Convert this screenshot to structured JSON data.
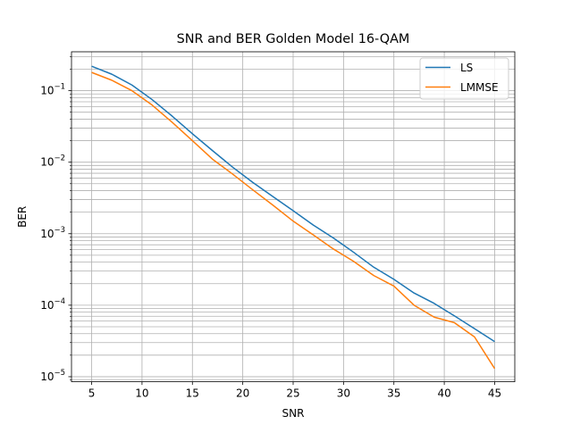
{
  "chart_data": {
    "type": "line",
    "title": "SNR and BER Golden Model 16-QAM",
    "xlabel": "SNR",
    "ylabel": "BER",
    "xlim": [
      3.0,
      47.0
    ],
    "ylim": [
      8.5e-06,
      0.35
    ],
    "yscale": "log",
    "grid": true,
    "grid_minor": true,
    "legend_position": "top-right",
    "x_ticks": [
      5,
      10,
      15,
      20,
      25,
      30,
      35,
      40,
      45
    ],
    "x_tick_labels": [
      "5",
      "10",
      "15",
      "20",
      "25",
      "30",
      "35",
      "40",
      "45"
    ],
    "y_ticks": [
      1e-05,
      0.0001,
      0.001,
      0.01,
      0.1
    ],
    "y_tick_labels": [
      {
        "base": "10",
        "exp": "−5"
      },
      {
        "base": "10",
        "exp": "−4"
      },
      {
        "base": "10",
        "exp": "−3"
      },
      {
        "base": "10",
        "exp": "−2"
      },
      {
        "base": "10",
        "exp": "−1"
      }
    ],
    "x": [
      5,
      7,
      9,
      11,
      13,
      15,
      17,
      19,
      21,
      23,
      25,
      27,
      29,
      31,
      33,
      35,
      37,
      39,
      41,
      43,
      45
    ],
    "series": [
      {
        "name": "LS",
        "color": "#1f77b4",
        "values": [
          0.22,
          0.17,
          0.12,
          0.075,
          0.044,
          0.025,
          0.0145,
          0.0085,
          0.0052,
          0.0033,
          0.0021,
          0.00132,
          0.00087,
          0.00055,
          0.00034,
          0.00023,
          0.000148,
          0.000106,
          7.1e-05,
          4.7e-05,
          3.1e-05
        ]
      },
      {
        "name": "LMMSE",
        "color": "#ff7f0e",
        "values": [
          0.18,
          0.14,
          0.1,
          0.063,
          0.036,
          0.02,
          0.011,
          0.0068,
          0.0041,
          0.0025,
          0.0015,
          0.00096,
          0.00061,
          0.00041,
          0.00026,
          0.000185,
          0.0001,
          6.8e-05,
          5.7e-05,
          3.6e-05,
          1.3e-05
        ]
      }
    ]
  }
}
